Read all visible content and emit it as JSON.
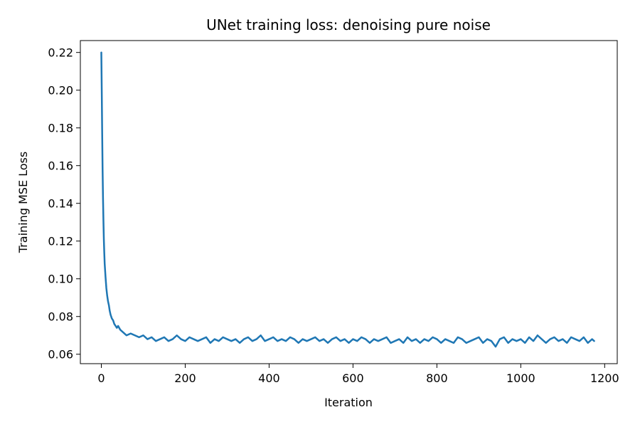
{
  "chart_data": {
    "type": "line",
    "title": "UNet training loss: denoising pure noise",
    "xlabel": "Iteration",
    "ylabel": "Training MSE Loss",
    "xlim": [
      -50,
      1230
    ],
    "ylim": [
      0.055,
      0.2263
    ],
    "x_ticks": [
      0,
      200,
      400,
      600,
      800,
      1000,
      1200
    ],
    "x_tick_labels": [
      "0",
      "200",
      "400",
      "600",
      "800",
      "1000",
      "1200"
    ],
    "y_ticks": [
      0.06,
      0.08,
      0.1,
      0.12,
      0.14,
      0.16,
      0.18,
      0.2,
      0.22
    ],
    "y_tick_labels": [
      "0.06",
      "0.08",
      "0.10",
      "0.12",
      "0.14",
      "0.16",
      "0.18",
      "0.20",
      "0.22"
    ],
    "grid": false,
    "legend": "none",
    "line_color": "#1f77b4",
    "series": [
      {
        "x": [
          0,
          1,
          2,
          3,
          4,
          5,
          6,
          7,
          8,
          10,
          12,
          14,
          16,
          18,
          20,
          22,
          25,
          28,
          31,
          34,
          37,
          40,
          45,
          50,
          55,
          60,
          70,
          80,
          90,
          100,
          110,
          120,
          130,
          140,
          150,
          160,
          170,
          180,
          190,
          200,
          210,
          220,
          230,
          240,
          250,
          260,
          270,
          280,
          290,
          300,
          310,
          320,
          330,
          340,
          350,
          360,
          370,
          380,
          390,
          400,
          410,
          420,
          430,
          440,
          450,
          460,
          470,
          480,
          490,
          500,
          510,
          520,
          530,
          540,
          550,
          560,
          570,
          580,
          590,
          600,
          610,
          620,
          630,
          640,
          650,
          660,
          670,
          680,
          690,
          700,
          710,
          720,
          730,
          740,
          750,
          760,
          770,
          780,
          790,
          800,
          810,
          820,
          830,
          840,
          850,
          860,
          870,
          880,
          890,
          900,
          910,
          920,
          930,
          940,
          950,
          960,
          970,
          980,
          990,
          1000,
          1010,
          1020,
          1030,
          1040,
          1050,
          1060,
          1070,
          1080,
          1090,
          1100,
          1110,
          1120,
          1130,
          1140,
          1150,
          1160,
          1170,
          1175
        ],
        "values": [
          0.22,
          0.2,
          0.178,
          0.158,
          0.143,
          0.131,
          0.121,
          0.114,
          0.108,
          0.101,
          0.095,
          0.091,
          0.088,
          0.086,
          0.083,
          0.081,
          0.079,
          0.078,
          0.076,
          0.075,
          0.074,
          0.075,
          0.073,
          0.072,
          0.071,
          0.07,
          0.071,
          0.07,
          0.069,
          0.07,
          0.068,
          0.069,
          0.067,
          0.068,
          0.069,
          0.067,
          0.068,
          0.07,
          0.068,
          0.067,
          0.069,
          0.068,
          0.067,
          0.068,
          0.069,
          0.066,
          0.068,
          0.067,
          0.069,
          0.068,
          0.067,
          0.068,
          0.066,
          0.068,
          0.069,
          0.067,
          0.068,
          0.07,
          0.067,
          0.068,
          0.069,
          0.067,
          0.068,
          0.067,
          0.069,
          0.068,
          0.066,
          0.068,
          0.067,
          0.068,
          0.069,
          0.067,
          0.068,
          0.066,
          0.068,
          0.069,
          0.067,
          0.068,
          0.066,
          0.068,
          0.067,
          0.069,
          0.068,
          0.066,
          0.068,
          0.067,
          0.068,
          0.069,
          0.066,
          0.067,
          0.068,
          0.066,
          0.069,
          0.067,
          0.068,
          0.066,
          0.068,
          0.067,
          0.069,
          0.068,
          0.066,
          0.068,
          0.067,
          0.066,
          0.069,
          0.068,
          0.066,
          0.067,
          0.068,
          0.069,
          0.066,
          0.068,
          0.067,
          0.064,
          0.068,
          0.069,
          0.066,
          0.068,
          0.067,
          0.068,
          0.066,
          0.069,
          0.067,
          0.07,
          0.068,
          0.066,
          0.068,
          0.069,
          0.067,
          0.068,
          0.066,
          0.069,
          0.068,
          0.067,
          0.069,
          0.066,
          0.068,
          0.067
        ]
      }
    ]
  }
}
